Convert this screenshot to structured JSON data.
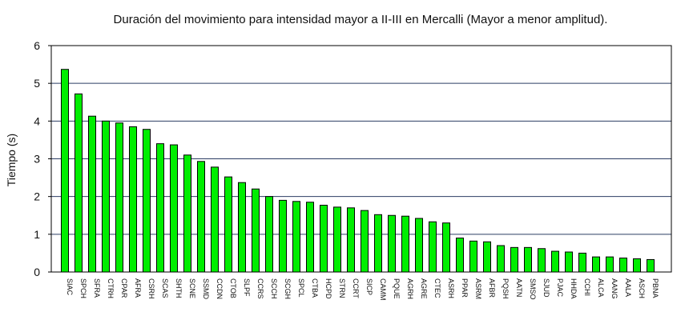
{
  "chart_data": {
    "type": "bar",
    "title": "Duración del movimiento para intensidad mayor a II-III en Mercalli (Mayor a menor amplitud).",
    "xlabel": "",
    "ylabel": "Tiempo (s)",
    "ylim": [
      0,
      6
    ],
    "yticks": [
      0,
      1,
      2,
      3,
      4,
      5,
      6
    ],
    "grid": "horizontal",
    "bar_color": "#00ee00",
    "categories": [
      "SIAC",
      "SPCH",
      "SFRA",
      "CTRH",
      "CPAR",
      "AFRA",
      "CSRH",
      "SCAS",
      "SHTH",
      "SCNE",
      "SSMD",
      "CCDN",
      "CTOB",
      "SLPF",
      "CCRS",
      "SCCH",
      "SCGH",
      "SPCL",
      "CTBA",
      "HCPD",
      "STRN",
      "CCRT",
      "SICP",
      "CAMM",
      "PQUE",
      "AGRH",
      "AGRE",
      "CTEC",
      "ASRH",
      "PPAR",
      "ASRM",
      "AFBR",
      "PQSH",
      "AATN",
      "SMSO",
      "SJUD",
      "PJAC",
      "HHDA",
      "CCHI",
      "ALCA",
      "AANG",
      "AALA",
      "ASCH",
      "PBNA"
    ],
    "values": [
      5.37,
      4.72,
      4.13,
      4.0,
      3.95,
      3.85,
      3.78,
      3.4,
      3.37,
      3.1,
      2.93,
      2.78,
      2.52,
      2.37,
      2.2,
      2.0,
      1.9,
      1.87,
      1.85,
      1.77,
      1.72,
      1.7,
      1.63,
      1.52,
      1.5,
      1.48,
      1.42,
      1.33,
      1.3,
      0.9,
      0.82,
      0.8,
      0.7,
      0.65,
      0.65,
      0.62,
      0.55,
      0.53,
      0.5,
      0.4,
      0.4,
      0.37,
      0.35,
      0.33
    ]
  }
}
